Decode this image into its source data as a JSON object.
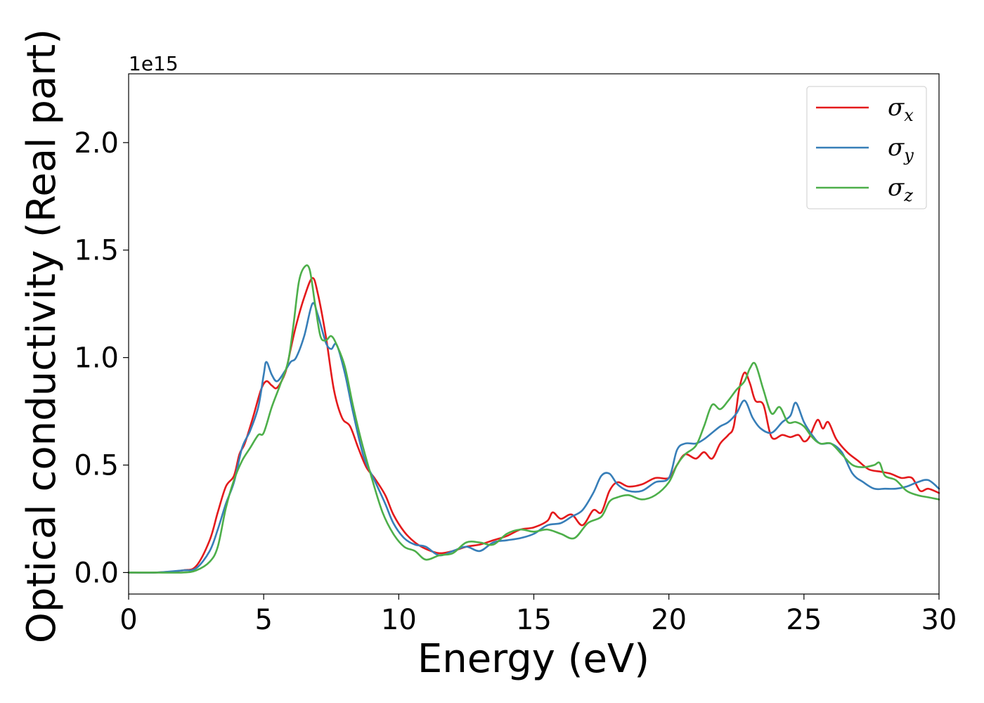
{
  "chart_data": {
    "type": "line",
    "xlabel": "Energy (eV)",
    "ylabel": "Optical conductivity (Real part)",
    "y_offset_label": "1e15",
    "xlim": [
      0,
      30
    ],
    "ylim": [
      -0.1,
      2.32
    ],
    "x_ticks": [
      0,
      5,
      10,
      15,
      20,
      25,
      30
    ],
    "x_tick_labels": [
      "0",
      "5",
      "10",
      "15",
      "20",
      "25",
      "30"
    ],
    "y_ticks": [
      0.0,
      0.5,
      1.0,
      1.5,
      2.0
    ],
    "y_tick_labels": [
      "0.0",
      "0.5",
      "1.0",
      "1.5",
      "2.0"
    ],
    "grid": false,
    "legend_position": "top-right",
    "series": [
      {
        "name": "σ",
        "subscript": "x",
        "color": "#e41a1c",
        "points": [
          [
            0,
            0.0
          ],
          [
            1,
            0.0
          ],
          [
            2,
            0.01
          ],
          [
            2.5,
            0.03
          ],
          [
            3,
            0.15
          ],
          [
            3.3,
            0.28
          ],
          [
            3.6,
            0.4
          ],
          [
            3.9,
            0.45
          ],
          [
            4.1,
            0.55
          ],
          [
            4.3,
            0.6
          ],
          [
            4.6,
            0.72
          ],
          [
            4.9,
            0.85
          ],
          [
            5.1,
            0.89
          ],
          [
            5.3,
            0.87
          ],
          [
            5.5,
            0.86
          ],
          [
            5.8,
            0.93
          ],
          [
            6.0,
            1.04
          ],
          [
            6.2,
            1.15
          ],
          [
            6.5,
            1.28
          ],
          [
            6.8,
            1.37
          ],
          [
            7.0,
            1.3
          ],
          [
            7.3,
            1.1
          ],
          [
            7.6,
            0.85
          ],
          [
            7.9,
            0.72
          ],
          [
            8.2,
            0.68
          ],
          [
            8.5,
            0.58
          ],
          [
            8.8,
            0.49
          ],
          [
            9.1,
            0.44
          ],
          [
            9.5,
            0.36
          ],
          [
            9.8,
            0.27
          ],
          [
            10.2,
            0.19
          ],
          [
            10.6,
            0.14
          ],
          [
            11.0,
            0.11
          ],
          [
            11.5,
            0.09
          ],
          [
            12.0,
            0.1
          ],
          [
            12.5,
            0.12
          ],
          [
            13.0,
            0.13
          ],
          [
            13.5,
            0.15
          ],
          [
            14.0,
            0.17
          ],
          [
            14.5,
            0.2
          ],
          [
            15.0,
            0.21
          ],
          [
            15.5,
            0.24
          ],
          [
            15.7,
            0.28
          ],
          [
            16.0,
            0.25
          ],
          [
            16.4,
            0.27
          ],
          [
            16.8,
            0.22
          ],
          [
            17.2,
            0.29
          ],
          [
            17.5,
            0.28
          ],
          [
            17.8,
            0.38
          ],
          [
            18.1,
            0.42
          ],
          [
            18.5,
            0.4
          ],
          [
            19.0,
            0.41
          ],
          [
            19.5,
            0.44
          ],
          [
            20.0,
            0.44
          ],
          [
            20.3,
            0.5
          ],
          [
            20.6,
            0.55
          ],
          [
            21.0,
            0.53
          ],
          [
            21.3,
            0.56
          ],
          [
            21.6,
            0.53
          ],
          [
            21.9,
            0.6
          ],
          [
            22.2,
            0.64
          ],
          [
            22.4,
            0.68
          ],
          [
            22.6,
            0.85
          ],
          [
            22.8,
            0.93
          ],
          [
            23.0,
            0.88
          ],
          [
            23.2,
            0.8
          ],
          [
            23.5,
            0.78
          ],
          [
            23.8,
            0.63
          ],
          [
            24.2,
            0.64
          ],
          [
            24.5,
            0.63
          ],
          [
            24.8,
            0.64
          ],
          [
            25.0,
            0.61
          ],
          [
            25.2,
            0.63
          ],
          [
            25.5,
            0.71
          ],
          [
            25.7,
            0.67
          ],
          [
            25.9,
            0.7
          ],
          [
            26.2,
            0.62
          ],
          [
            26.6,
            0.56
          ],
          [
            27.0,
            0.52
          ],
          [
            27.4,
            0.48
          ],
          [
            27.8,
            0.47
          ],
          [
            28.2,
            0.46
          ],
          [
            28.6,
            0.44
          ],
          [
            29.0,
            0.44
          ],
          [
            29.3,
            0.38
          ],
          [
            29.6,
            0.39
          ],
          [
            30,
            0.37
          ]
        ]
      },
      {
        "name": "σ",
        "subscript": "y",
        "color": "#377eb8",
        "points": [
          [
            0,
            0.0
          ],
          [
            1,
            0.0
          ],
          [
            2,
            0.01
          ],
          [
            2.5,
            0.02
          ],
          [
            3,
            0.1
          ],
          [
            3.3,
            0.2
          ],
          [
            3.6,
            0.32
          ],
          [
            3.9,
            0.42
          ],
          [
            4.2,
            0.58
          ],
          [
            4.5,
            0.66
          ],
          [
            4.8,
            0.77
          ],
          [
            5.0,
            0.92
          ],
          [
            5.1,
            0.98
          ],
          [
            5.3,
            0.92
          ],
          [
            5.5,
            0.89
          ],
          [
            5.8,
            0.94
          ],
          [
            6.0,
            0.98
          ],
          [
            6.2,
            1.0
          ],
          [
            6.5,
            1.1
          ],
          [
            6.8,
            1.25
          ],
          [
            7.0,
            1.2
          ],
          [
            7.3,
            1.07
          ],
          [
            7.5,
            1.04
          ],
          [
            7.7,
            1.06
          ],
          [
            8.0,
            0.93
          ],
          [
            8.3,
            0.75
          ],
          [
            8.7,
            0.54
          ],
          [
            9.1,
            0.43
          ],
          [
            9.5,
            0.32
          ],
          [
            9.8,
            0.23
          ],
          [
            10.2,
            0.16
          ],
          [
            10.6,
            0.13
          ],
          [
            11.0,
            0.12
          ],
          [
            11.5,
            0.08
          ],
          [
            12.0,
            0.1
          ],
          [
            12.5,
            0.12
          ],
          [
            13.0,
            0.1
          ],
          [
            13.5,
            0.14
          ],
          [
            14.0,
            0.15
          ],
          [
            14.5,
            0.16
          ],
          [
            15.0,
            0.18
          ],
          [
            15.5,
            0.22
          ],
          [
            16.0,
            0.23
          ],
          [
            16.4,
            0.26
          ],
          [
            16.8,
            0.29
          ],
          [
            17.2,
            0.37
          ],
          [
            17.5,
            0.45
          ],
          [
            17.8,
            0.46
          ],
          [
            18.1,
            0.41
          ],
          [
            18.5,
            0.38
          ],
          [
            19.0,
            0.38
          ],
          [
            19.5,
            0.42
          ],
          [
            20.0,
            0.44
          ],
          [
            20.3,
            0.57
          ],
          [
            20.6,
            0.6
          ],
          [
            21.0,
            0.6
          ],
          [
            21.3,
            0.62
          ],
          [
            21.6,
            0.65
          ],
          [
            21.9,
            0.68
          ],
          [
            22.2,
            0.7
          ],
          [
            22.5,
            0.74
          ],
          [
            22.8,
            0.8
          ],
          [
            23.1,
            0.72
          ],
          [
            23.4,
            0.67
          ],
          [
            23.8,
            0.65
          ],
          [
            24.2,
            0.7
          ],
          [
            24.5,
            0.73
          ],
          [
            24.7,
            0.79
          ],
          [
            25.0,
            0.7
          ],
          [
            25.3,
            0.64
          ],
          [
            25.6,
            0.6
          ],
          [
            26.0,
            0.6
          ],
          [
            26.4,
            0.56
          ],
          [
            26.8,
            0.46
          ],
          [
            27.2,
            0.42
          ],
          [
            27.6,
            0.39
          ],
          [
            28.0,
            0.39
          ],
          [
            28.4,
            0.39
          ],
          [
            28.8,
            0.4
          ],
          [
            29.2,
            0.42
          ],
          [
            29.6,
            0.43
          ],
          [
            30,
            0.39
          ]
        ]
      },
      {
        "name": "σ",
        "subscript": "z",
        "color": "#4daf4a",
        "points": [
          [
            0,
            0.0
          ],
          [
            1,
            0.0
          ],
          [
            2,
            0.0
          ],
          [
            2.5,
            0.01
          ],
          [
            3,
            0.05
          ],
          [
            3.3,
            0.12
          ],
          [
            3.6,
            0.3
          ],
          [
            3.9,
            0.43
          ],
          [
            4.2,
            0.52
          ],
          [
            4.5,
            0.58
          ],
          [
            4.8,
            0.64
          ],
          [
            5.0,
            0.65
          ],
          [
            5.3,
            0.77
          ],
          [
            5.6,
            0.87
          ],
          [
            5.9,
            0.98
          ],
          [
            6.1,
            1.15
          ],
          [
            6.3,
            1.35
          ],
          [
            6.5,
            1.42
          ],
          [
            6.7,
            1.41
          ],
          [
            6.9,
            1.25
          ],
          [
            7.1,
            1.1
          ],
          [
            7.3,
            1.08
          ],
          [
            7.5,
            1.1
          ],
          [
            7.7,
            1.06
          ],
          [
            8.0,
            0.96
          ],
          [
            8.3,
            0.78
          ],
          [
            8.6,
            0.62
          ],
          [
            9.0,
            0.44
          ],
          [
            9.4,
            0.28
          ],
          [
            9.8,
            0.18
          ],
          [
            10.2,
            0.12
          ],
          [
            10.6,
            0.1
          ],
          [
            11.0,
            0.06
          ],
          [
            11.5,
            0.08
          ],
          [
            12.0,
            0.09
          ],
          [
            12.5,
            0.14
          ],
          [
            13.0,
            0.14
          ],
          [
            13.5,
            0.13
          ],
          [
            14.0,
            0.18
          ],
          [
            14.5,
            0.2
          ],
          [
            15.0,
            0.19
          ],
          [
            15.5,
            0.2
          ],
          [
            16.0,
            0.18
          ],
          [
            16.5,
            0.16
          ],
          [
            17.0,
            0.23
          ],
          [
            17.5,
            0.26
          ],
          [
            17.8,
            0.33
          ],
          [
            18.1,
            0.35
          ],
          [
            18.5,
            0.36
          ],
          [
            19.0,
            0.34
          ],
          [
            19.5,
            0.36
          ],
          [
            20.0,
            0.42
          ],
          [
            20.3,
            0.5
          ],
          [
            20.6,
            0.55
          ],
          [
            21.0,
            0.59
          ],
          [
            21.3,
            0.68
          ],
          [
            21.6,
            0.78
          ],
          [
            21.9,
            0.76
          ],
          [
            22.2,
            0.8
          ],
          [
            22.5,
            0.85
          ],
          [
            22.8,
            0.89
          ],
          [
            23.0,
            0.95
          ],
          [
            23.2,
            0.97
          ],
          [
            23.5,
            0.85
          ],
          [
            23.8,
            0.74
          ],
          [
            24.1,
            0.77
          ],
          [
            24.4,
            0.7
          ],
          [
            24.7,
            0.7
          ],
          [
            25.0,
            0.68
          ],
          [
            25.3,
            0.63
          ],
          [
            25.6,
            0.6
          ],
          [
            26.0,
            0.6
          ],
          [
            26.4,
            0.55
          ],
          [
            26.8,
            0.5
          ],
          [
            27.2,
            0.49
          ],
          [
            27.6,
            0.5
          ],
          [
            27.8,
            0.51
          ],
          [
            28.0,
            0.45
          ],
          [
            28.4,
            0.43
          ],
          [
            28.8,
            0.38
          ],
          [
            29.2,
            0.36
          ],
          [
            29.6,
            0.35
          ],
          [
            30,
            0.34
          ]
        ]
      }
    ]
  }
}
